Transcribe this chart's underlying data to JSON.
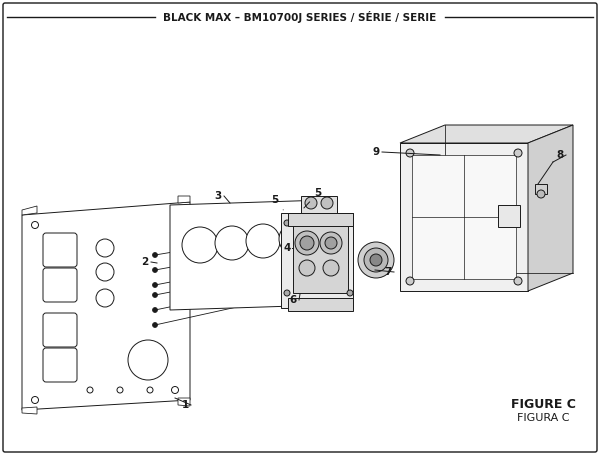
{
  "title": "BLACK MAX – BM10700J SERIES / SÉRIE / SERIE",
  "figure_label": "FIGURE C",
  "figura_label": "FIGURA C",
  "bg": "#ffffff",
  "lc": "#1a1a1a",
  "gray1": "#e0e0e0",
  "gray2": "#cccccc",
  "gray3": "#b8b8b8"
}
